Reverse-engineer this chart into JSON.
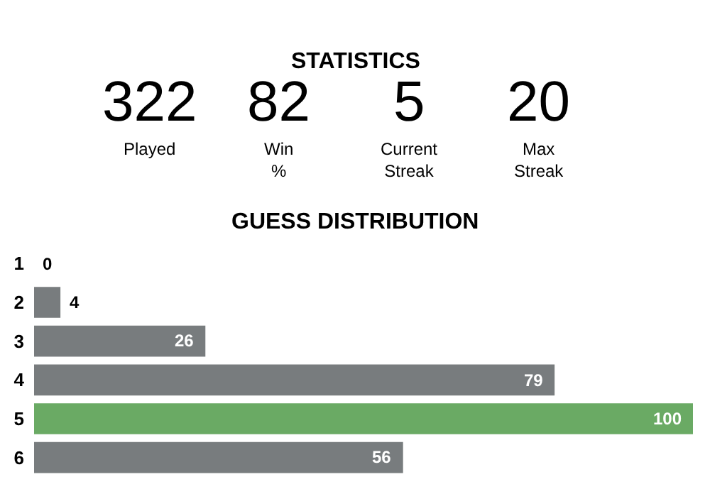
{
  "chart_data": [
    {
      "type": "other",
      "title": "STATISTICS",
      "categories": [
        "Played",
        "Win %",
        "Current Streak",
        "Max Streak"
      ],
      "values": [
        322,
        82,
        5,
        20
      ],
      "data_labels": true
    },
    {
      "type": "bar",
      "title": "GUESS DISTRIBUTION",
      "orientation": "horizontal",
      "categories": [
        "1",
        "2",
        "3",
        "4",
        "5",
        "6"
      ],
      "values": [
        0,
        4,
        26,
        79,
        100,
        56
      ],
      "colors": [
        "#787c7e",
        "#787c7e",
        "#787c7e",
        "#787c7e",
        "#6aaa64",
        "#787c7e"
      ],
      "xlim": [
        0,
        100
      ],
      "tick_labels": "y",
      "data_labels": true
    }
  ]
}
